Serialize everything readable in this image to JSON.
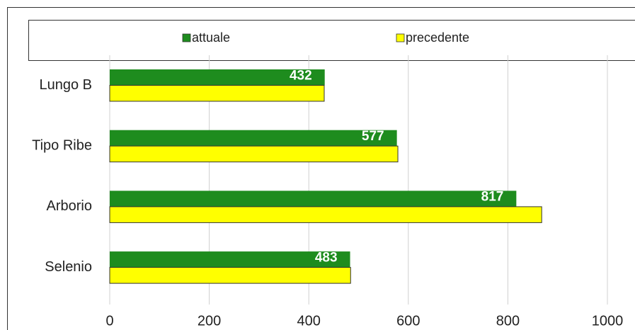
{
  "chart_data": {
    "type": "hbar",
    "categories": [
      "Lungo B",
      "Tipo Ribe",
      "Arborio",
      "Selenio"
    ],
    "series": [
      {
        "name": "attuale",
        "color": "#1e8c1e",
        "values": [
          432,
          577,
          817,
          483
        ],
        "data_labels": true
      },
      {
        "name": "precedente",
        "color": "#ffff00",
        "values": [
          431,
          579,
          868,
          484
        ]
      }
    ],
    "xlim": [
      0,
      1000
    ],
    "xticks": [
      0,
      200,
      400,
      600,
      800,
      1000
    ],
    "grid": true,
    "legend": "top"
  }
}
